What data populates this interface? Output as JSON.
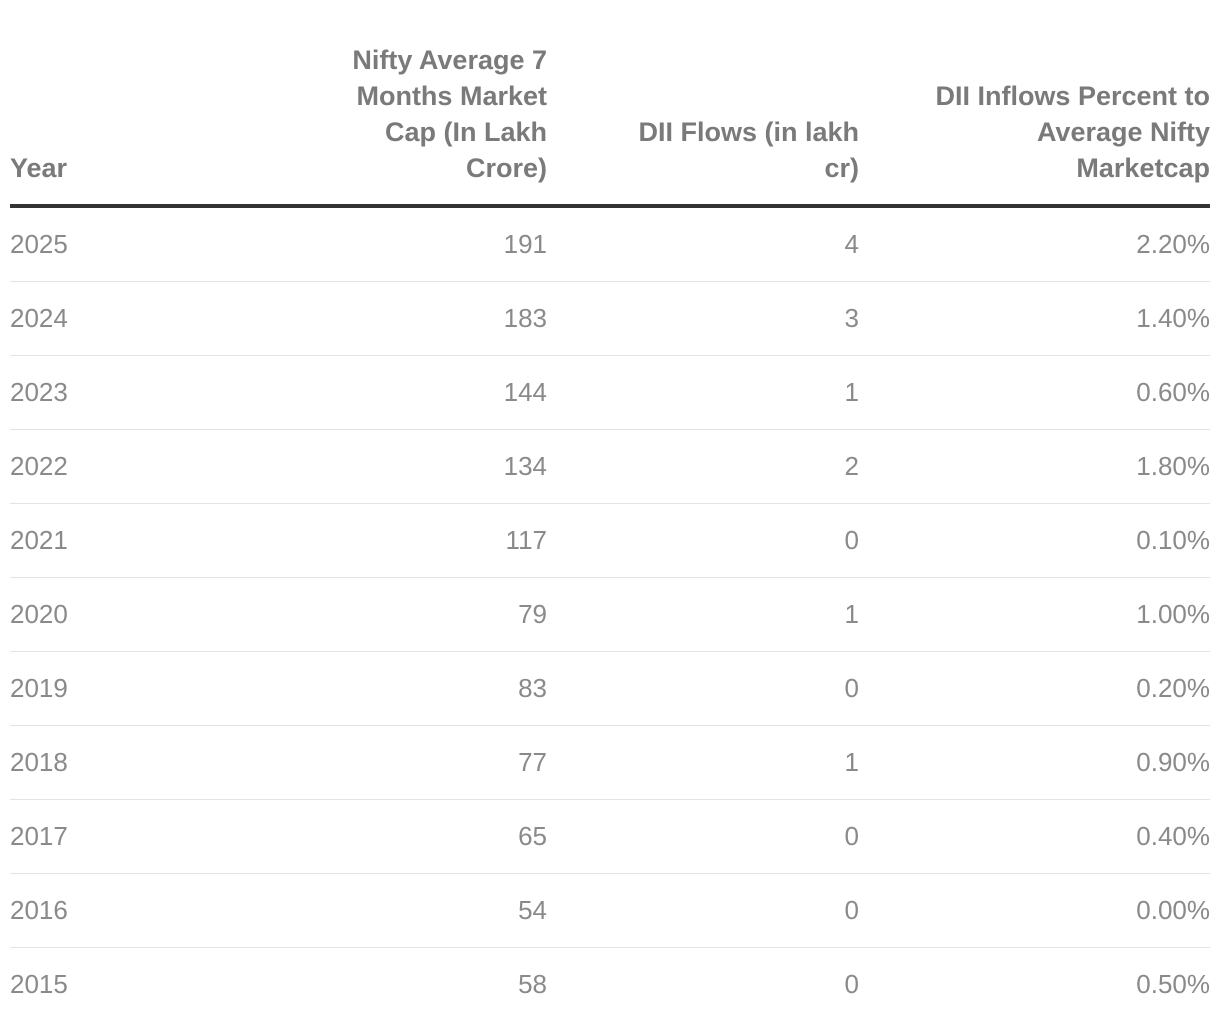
{
  "table": {
    "columns": [
      "Year",
      "Nifty Average 7 Months Market Cap (In Lakh Crore)",
      "DII Flows (in lakh cr)",
      "DII Inflows Percent to Average Nifty Marketcap"
    ],
    "rows": [
      [
        "2025",
        "191",
        "4",
        "2.20%"
      ],
      [
        "2024",
        "183",
        "3",
        "1.40%"
      ],
      [
        "2023",
        "144",
        "1",
        "0.60%"
      ],
      [
        "2022",
        "134",
        "2",
        "1.80%"
      ],
      [
        "2021",
        "117",
        "0",
        "0.10%"
      ],
      [
        "2020",
        "79",
        "1",
        "1.00%"
      ],
      [
        "2019",
        "83",
        "0",
        "0.20%"
      ],
      [
        "2018",
        "77",
        "1",
        "0.90%"
      ],
      [
        "2017",
        "65",
        "0",
        "0.40%"
      ],
      [
        "2016",
        "54",
        "0",
        "0.00%"
      ],
      [
        "2015",
        "58",
        "0",
        "0.50%"
      ]
    ]
  }
}
